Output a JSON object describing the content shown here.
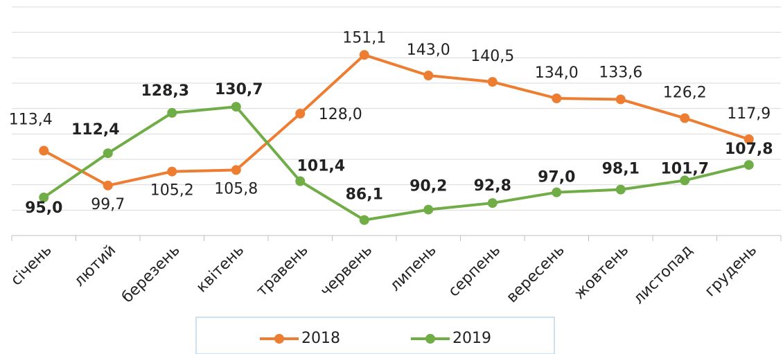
{
  "chart_data": {
    "type": "line",
    "categories": [
      "січень",
      "лютий",
      "березень",
      "квітень",
      "травень",
      "червень",
      "липень",
      "серпень",
      "вересень",
      "жовтень",
      "листопад",
      "грудень"
    ],
    "series": [
      {
        "name": "2018",
        "color": "#ed7d31",
        "values": [
          113.4,
          99.7,
          105.2,
          105.8,
          128.0,
          151.1,
          143.0,
          140.5,
          134.0,
          133.6,
          126.2,
          117.9
        ],
        "value_labels": [
          "113,4",
          "99,7",
          "105,2",
          "105,8",
          "128,0",
          "151,1",
          "143,0",
          "140,5",
          "134,0",
          "133,6",
          "126,2",
          "117,9"
        ]
      },
      {
        "name": "2019",
        "color": "#70ad47",
        "values": [
          95.0,
          112.4,
          128.3,
          130.7,
          101.4,
          86.1,
          90.2,
          92.8,
          97.0,
          98.1,
          101.7,
          107.8
        ],
        "value_labels": [
          "95,0",
          "112,4",
          "128,3",
          "130,7",
          "101,4",
          "86,1",
          "90,2",
          "92,8",
          "97,0",
          "98,1",
          "101,7",
          "107,8"
        ]
      }
    ],
    "ylim": [
      80,
      170
    ],
    "yticks": [
      80,
      90,
      100,
      110,
      120,
      130,
      140,
      150,
      160,
      170
    ],
    "show_ytick_labels": false,
    "grid": true,
    "legend": "bottom"
  }
}
